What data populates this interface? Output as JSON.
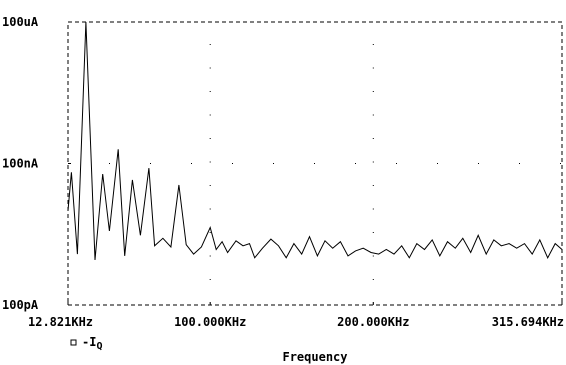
{
  "chart_data": {
    "type": "line",
    "xlabel": "Frequency",
    "y_scale": "log",
    "ylim_amps": [
      1e-10,
      0.0001
    ],
    "xlim_khz": [
      12.821,
      315.694
    ],
    "y_ticks": [
      {
        "label": "100uA",
        "value": 0.0001
      },
      {
        "label": "100nA",
        "value": 1e-07
      },
      {
        "label": "100pA",
        "value": 1e-10
      }
    ],
    "x_ticks": [
      {
        "label": "12.821KHz",
        "value": 12.821
      },
      {
        "label": "100.000KHz",
        "value": 100.0
      },
      {
        "label": "200.000KHz",
        "value": 200.0
      },
      {
        "label": "315.694KHz",
        "value": 315.694
      }
    ],
    "grid": "dotted",
    "legend": {
      "position": "bottom-left",
      "marker": "square"
    },
    "series": [
      {
        "name": "-I",
        "name_subscript": "Q",
        "x": [
          12.821,
          14.9,
          18.6,
          23.8,
          29.4,
          34.1,
          38.2,
          43.6,
          47.6,
          52.3,
          57.2,
          62.4,
          65.9,
          71.0,
          75.9,
          80.8,
          85.3,
          89.8,
          94.6,
          100.0,
          103.7,
          107.3,
          110.7,
          115.8,
          120.1,
          124.1,
          127.3,
          132.1,
          137.2,
          141.9,
          146.6,
          151.3,
          156.1,
          160.9,
          165.7,
          170.4,
          175.1,
          179.8,
          184.5,
          189.1,
          193.8,
          198.6,
          203.3,
          208.0,
          212.7,
          217.4,
          222.1,
          226.7,
          231.4,
          236.1,
          240.8,
          245.5,
          250.3,
          254.9,
          259.7,
          264.3,
          269.2,
          273.9,
          278.5,
          283.2,
          287.9,
          292.7,
          297.4,
          302.1,
          306.9,
          311.5,
          315.694
        ],
        "y": [
          1e-08,
          6.5e-08,
          1.2e-09,
          0.0001,
          9e-10,
          6e-08,
          3.7e-09,
          2e-07,
          1.1e-09,
          4.5e-08,
          3e-09,
          8e-08,
          1.8e-09,
          2.6e-09,
          1.7e-09,
          3.5e-08,
          1.9e-09,
          1.2e-09,
          1.7e-09,
          4.4e-09,
          1.5e-09,
          2.2e-09,
          1.3e-09,
          2.3e-09,
          1.8e-09,
          2e-09,
          1e-09,
          1.6e-09,
          2.5e-09,
          1.8e-09,
          1e-09,
          2e-09,
          1.2e-09,
          2.8e-09,
          1.1e-09,
          2.3e-09,
          1.6e-09,
          2.2e-09,
          1.1e-09,
          1.4e-09,
          1.6e-09,
          1.3e-09,
          1.2e-09,
          1.5e-09,
          1.2e-09,
          1.8e-09,
          1e-09,
          2e-09,
          1.5e-09,
          2.4e-09,
          1.1e-09,
          2.2e-09,
          1.6e-09,
          2.6e-09,
          1.3e-09,
          3e-09,
          1.2e-09,
          2.4e-09,
          1.8e-09,
          2e-09,
          1.6e-09,
          2e-09,
          1.2e-09,
          2.4e-09,
          1e-09,
          2e-09,
          1.5e-09
        ]
      }
    ]
  }
}
